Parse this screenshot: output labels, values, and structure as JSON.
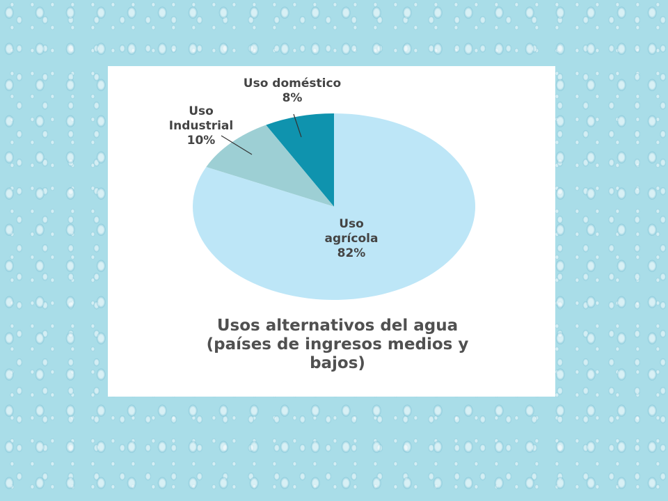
{
  "chart_data": {
    "type": "pie",
    "title": "Usos alternativos del agua (países de ingresos medios y bajos)",
    "categories": [
      "Uso agrícola",
      "Uso Industrial",
      "Uso doméstico"
    ],
    "values": [
      82,
      10,
      8
    ],
    "value_labels": [
      "82%",
      "10%",
      "8%"
    ],
    "colors": [
      "#bde6f7",
      "#9dcfd4",
      "#0f93ae"
    ]
  }
}
